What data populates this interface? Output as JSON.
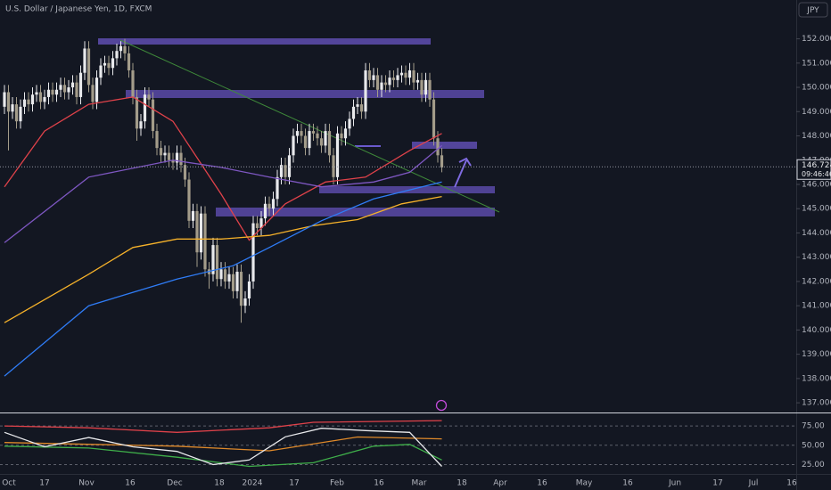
{
  "chart_data": {
    "type": "candlestick",
    "title": "U.S. Dollar / Japanese Yen, 1D, FXCM",
    "currency": "JPY",
    "up_color": "#e8e9ec",
    "down_color": "#a39c8a",
    "open": [
      149.2,
      149.8,
      149.0,
      149.3,
      148.6,
      149.2,
      149.5,
      149.3,
      149.7,
      149.8,
      149.4,
      149.6,
      149.9,
      149.7,
      149.9,
      150.1,
      149.8,
      150.0,
      150.2,
      149.6,
      150.6,
      151.6,
      150.1,
      149.4,
      150.4,
      150.9,
      151.0,
      150.8,
      151.2,
      151.5,
      151.7,
      151.4,
      150.7,
      149.6,
      148.3,
      148.6,
      149.7,
      149.5,
      148.2,
      147.5,
      147.2,
      147.3,
      147.0,
      146.9,
      147.3,
      146.8,
      146.2,
      144.5,
      144.9,
      143.2,
      144.8,
      142.5,
      142.3,
      143.5,
      142.1,
      142.5,
      142.0,
      142.3,
      141.6,
      142.4,
      141.0,
      141.3,
      142.0,
      144.4,
      144.2,
      144.6,
      145.2,
      145.0,
      145.4,
      146.3,
      146.8,
      146.3,
      147.2,
      148.0,
      148.2,
      148.0,
      147.5,
      148.2,
      148.1,
      147.9,
      147.6,
      148.2,
      147.2,
      146.3,
      148.1,
      147.9,
      148.3,
      148.7,
      149.2,
      149.3,
      149.0,
      150.7,
      150.3,
      150.5,
      149.9,
      150.2,
      150.1,
      150.4,
      150.3,
      150.5,
      150.6,
      150.4,
      150.7,
      150.2,
      150.3,
      149.7,
      150.3,
      149.5,
      147.9,
      147.2
    ],
    "high": [
      150.1,
      150.1,
      149.6,
      149.6,
      149.5,
      149.8,
      149.8,
      150.0,
      150.1,
      150.1,
      149.9,
      150.2,
      150.2,
      150.2,
      150.4,
      150.4,
      150.3,
      150.5,
      150.5,
      150.9,
      151.9,
      151.9,
      150.4,
      150.7,
      151.2,
      151.3,
      151.3,
      151.5,
      151.8,
      151.9,
      152.0,
      151.7,
      151.0,
      149.9,
      148.9,
      150.0,
      150.0,
      149.8,
      148.5,
      147.8,
      147.6,
      147.6,
      147.3,
      147.6,
      147.6,
      147.1,
      146.5,
      145.2,
      145.2,
      145.1,
      145.1,
      142.8,
      143.8,
      143.8,
      142.8,
      142.8,
      142.6,
      142.6,
      142.7,
      142.7,
      141.6,
      142.3,
      144.7,
      144.7,
      144.9,
      145.5,
      145.5,
      145.7,
      146.6,
      147.1,
      147.1,
      147.5,
      148.3,
      148.5,
      148.5,
      148.3,
      148.5,
      148.5,
      148.4,
      148.2,
      148.5,
      148.5,
      147.5,
      148.4,
      148.4,
      148.6,
      149.0,
      149.5,
      149.6,
      149.6,
      151.0,
      151.0,
      150.8,
      150.8,
      150.5,
      150.5,
      150.7,
      150.7,
      150.8,
      150.9,
      150.9,
      151.0,
      151.0,
      150.6,
      150.6,
      150.6,
      150.6,
      149.8,
      148.2,
      147.5
    ],
    "low": [
      148.9,
      147.4,
      148.7,
      148.3,
      148.3,
      148.9,
      149.0,
      149.0,
      149.4,
      149.1,
      149.1,
      149.3,
      149.4,
      149.4,
      149.6,
      149.5,
      149.5,
      149.7,
      149.3,
      149.3,
      150.3,
      149.8,
      149.1,
      149.1,
      150.1,
      150.6,
      150.5,
      150.5,
      150.9,
      151.2,
      151.1,
      150.4,
      149.3,
      147.8,
      148.0,
      148.3,
      149.2,
      147.9,
      147.2,
      146.9,
      146.9,
      146.7,
      146.6,
      146.6,
      146.5,
      145.9,
      144.2,
      144.2,
      142.6,
      142.9,
      142.2,
      141.7,
      142.0,
      141.8,
      141.8,
      141.7,
      141.7,
      141.3,
      141.3,
      140.3,
      140.7,
      141.0,
      141.7,
      143.9,
      143.9,
      144.3,
      144.7,
      144.7,
      145.1,
      146.0,
      146.0,
      146.0,
      146.9,
      147.7,
      147.7,
      147.2,
      147.2,
      147.8,
      147.6,
      147.3,
      147.3,
      146.9,
      146.0,
      146.0,
      147.6,
      147.6,
      148.0,
      148.4,
      148.9,
      148.7,
      148.7,
      150.0,
      150.0,
      149.6,
      149.6,
      149.8,
      149.8,
      150.0,
      150.0,
      150.2,
      150.1,
      150.1,
      149.9,
      149.9,
      149.4,
      149.4,
      149.2,
      147.6,
      146.9,
      146.5
    ],
    "close": [
      149.8,
      149.0,
      149.3,
      148.6,
      149.2,
      149.5,
      149.3,
      149.7,
      149.8,
      149.4,
      149.6,
      149.9,
      149.7,
      149.9,
      150.1,
      149.8,
      150.0,
      150.2,
      149.6,
      150.6,
      151.6,
      150.1,
      149.4,
      150.4,
      150.9,
      151.0,
      150.8,
      151.2,
      151.5,
      151.7,
      151.4,
      150.7,
      149.6,
      148.3,
      148.6,
      149.7,
      149.5,
      148.2,
      147.5,
      147.2,
      147.3,
      147.0,
      146.9,
      147.3,
      146.8,
      146.2,
      144.5,
      144.9,
      143.2,
      144.8,
      142.5,
      142.3,
      143.5,
      142.1,
      142.5,
      142.0,
      142.3,
      141.6,
      142.4,
      141.0,
      141.3,
      142.0,
      144.4,
      144.2,
      144.6,
      145.2,
      145.0,
      145.4,
      146.3,
      146.8,
      146.3,
      147.2,
      148.0,
      148.2,
      148.0,
      147.5,
      148.2,
      148.1,
      147.9,
      147.6,
      148.2,
      147.2,
      146.3,
      148.1,
      147.9,
      148.3,
      148.7,
      149.2,
      149.3,
      149.0,
      150.7,
      150.3,
      150.5,
      149.9,
      150.2,
      150.1,
      150.4,
      150.3,
      150.5,
      150.6,
      150.4,
      150.7,
      150.2,
      150.3,
      149.7,
      150.3,
      149.5,
      147.9,
      147.2,
      146.7
    ],
    "lines": [
      {
        "color": "#e0424a",
        "x": [
          0,
          10,
          21,
          32,
          42,
          54,
          61,
          70,
          80,
          90,
          101,
          109
        ],
        "values": [
          145.9,
          148.2,
          149.3,
          149.6,
          148.6,
          145.6,
          143.7,
          145.2,
          146.1,
          146.3,
          147.4,
          148.1
        ]
      },
      {
        "color": "#7e57c2",
        "x": [
          0,
          21,
          42,
          54,
          66,
          79,
          92,
          101,
          109
        ],
        "values": [
          143.6,
          146.3,
          147.0,
          146.7,
          146.3,
          145.9,
          146.1,
          146.5,
          147.6
        ]
      },
      {
        "color": "#f5b12a",
        "x": [
          0,
          21,
          32,
          43,
          54,
          66,
          77,
          88,
          99,
          109
        ],
        "values": [
          140.3,
          142.3,
          143.4,
          143.75,
          143.75,
          143.9,
          144.3,
          144.55,
          145.2,
          145.5
        ]
      },
      {
        "color": "#2f7cf6",
        "x": [
          0,
          21,
          43,
          57,
          66,
          79,
          92,
          109
        ],
        "values": [
          138.1,
          141.0,
          142.1,
          142.65,
          143.4,
          144.5,
          145.4,
          146.1
        ]
      }
    ],
    "ylim": [
      136.6,
      153.6
    ],
    "yticks": [
      {
        "value": 152,
        "label": "152.000"
      },
      {
        "value": 151,
        "label": "151.000"
      },
      {
        "value": 150,
        "label": "150.000"
      },
      {
        "value": 149,
        "label": "149.000"
      },
      {
        "value": 148,
        "label": "148.000"
      },
      {
        "value": 147,
        "label": "147.000"
      },
      {
        "value": 146,
        "label": "146.000"
      },
      {
        "value": 145,
        "label": "145.000"
      },
      {
        "value": 144,
        "label": "144.000"
      },
      {
        "value": 143,
        "label": "143.000"
      },
      {
        "value": 142,
        "label": "142.000"
      },
      {
        "value": 141,
        "label": "141.000"
      },
      {
        "value": 140,
        "label": "140.000"
      },
      {
        "value": 139,
        "label": "139.000"
      },
      {
        "value": 138,
        "label": "138.000"
      },
      {
        "value": 137,
        "label": "137.000"
      }
    ],
    "last_price": {
      "value": 146.724,
      "label": "146.724"
    },
    "countdown": "09:46:46",
    "x_labels": [
      "Oct",
      "17",
      "Nov",
      "16",
      "Dec",
      "18",
      "2024",
      "17",
      "Feb",
      "16",
      "Mar",
      "18",
      "Apr",
      "16",
      "May",
      "16",
      "Jun",
      "17",
      "Jul",
      "16"
    ],
    "indicator": {
      "ylim": [
        14,
        89
      ],
      "yticks": [
        {
          "value": 75,
          "label": "75.00"
        },
        {
          "value": 50,
          "label": "50.00"
        },
        {
          "value": 25,
          "label": "25.00"
        }
      ],
      "lines": [
        {
          "color": "#e0424a",
          "x": [
            0,
            21,
            43,
            66,
            77,
            109
          ],
          "values": [
            75,
            72.6,
            66.7,
            72.6,
            79.8,
            82
          ]
        },
        {
          "color": "#e08a2a",
          "x": [
            0,
            43,
            66,
            88,
            109
          ],
          "values": [
            53.6,
            48.8,
            42.9,
            60.7,
            58.3
          ]
        },
        {
          "color": "#3fb04a",
          "x": [
            0,
            21,
            43,
            61,
            77,
            92,
            101,
            109
          ],
          "values": [
            48.8,
            46.4,
            34.5,
            22.6,
            27.4,
            48.8,
            51.2,
            31
          ]
        },
        {
          "color": "#e8e9ec",
          "x": [
            0,
            10,
            21,
            32,
            43,
            52,
            61,
            70,
            79,
            90,
            101,
            109
          ],
          "values": [
            66.7,
            48,
            60,
            48,
            42,
            25,
            31,
            61,
            72,
            69,
            66.7,
            22.6
          ]
        }
      ]
    }
  }
}
